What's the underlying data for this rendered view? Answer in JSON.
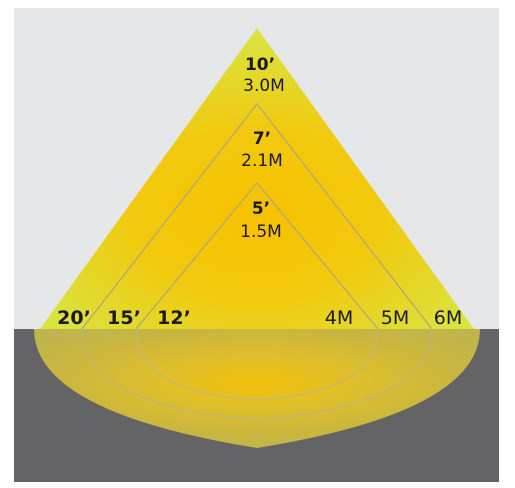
{
  "colors": {
    "wall": "#e6e7e9",
    "floor": "#646466",
    "cone_core": "#f7c100",
    "cone_edge": "#d7e645",
    "outline": "#b3a77a",
    "text": "#1a1a1a"
  },
  "zones": [
    {
      "id": "outer",
      "height_ft": "10’",
      "height_m": "3.0M",
      "diameter_ft": "20’",
      "diameter_m": "6M"
    },
    {
      "id": "middle",
      "height_ft": "7’",
      "height_m": "2.1M",
      "diameter_ft": "15’",
      "diameter_m": "5M"
    },
    {
      "id": "inner",
      "height_ft": "5’",
      "height_m": "1.5M",
      "diameter_ft": "12’",
      "diameter_m": "4M"
    }
  ]
}
